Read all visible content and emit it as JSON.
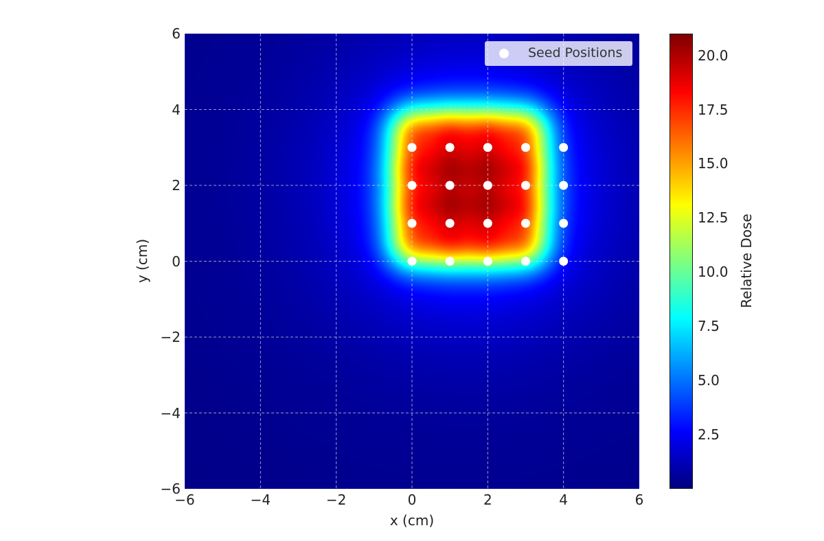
{
  "chart_data": {
    "type": "heatmap",
    "title": "",
    "xlabel": "x (cm)",
    "ylabel": "y (cm)",
    "xlim": [
      -6,
      6
    ],
    "ylim": [
      -6,
      6
    ],
    "xticks": [
      "−6",
      "−4",
      "−2",
      "0",
      "2",
      "4",
      "6"
    ],
    "xtick_values": [
      -6,
      -4,
      -2,
      0,
      2,
      4,
      6
    ],
    "yticks": [
      "−6",
      "−4",
      "−2",
      "0",
      "2",
      "4",
      "6"
    ],
    "ytick_values": [
      -6,
      -4,
      -2,
      0,
      2,
      4,
      6
    ],
    "grid": true,
    "colormap": "jet",
    "colorbar": {
      "label": "Relative Dose",
      "range": [
        0,
        21
      ],
      "ticks": [
        "2.5",
        "5.0",
        "7.5",
        "10.0",
        "12.5",
        "15.0",
        "17.5",
        "20.0"
      ],
      "tick_values": [
        2.5,
        5,
        7.5,
        10,
        12.5,
        15,
        17.5,
        20
      ]
    },
    "legend": {
      "position": "top-right",
      "entries": [
        "Seed Positions"
      ]
    },
    "seed_color": "#ffffff",
    "seeds": [
      [
        0,
        0
      ],
      [
        1,
        0
      ],
      [
        2,
        0
      ],
      [
        3,
        0
      ],
      [
        4,
        0
      ],
      [
        0,
        1
      ],
      [
        1,
        1
      ],
      [
        2,
        1
      ],
      [
        3,
        1
      ],
      [
        4,
        1
      ],
      [
        0,
        2
      ],
      [
        1,
        2
      ],
      [
        2,
        2
      ],
      [
        3,
        2
      ],
      [
        4,
        2
      ],
      [
        0,
        3
      ],
      [
        1,
        3
      ],
      [
        2,
        3
      ],
      [
        3,
        3
      ],
      [
        4,
        3
      ]
    ]
  }
}
